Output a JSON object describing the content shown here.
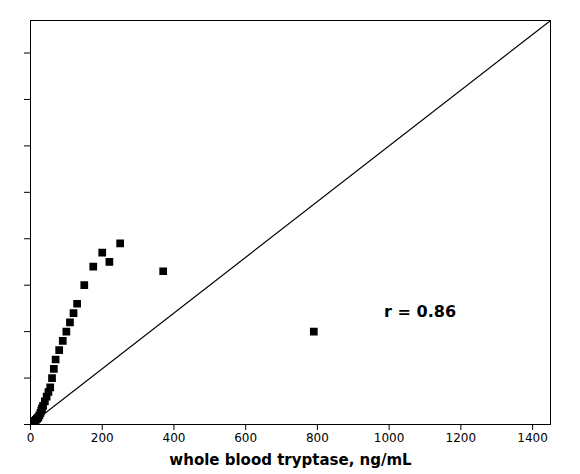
{
  "chart_data": {
    "type": "scatter",
    "xlabel": "whole blood tryptase, ng/mL",
    "annotation": "r = 0.86",
    "series": [
      {
        "type": "scatter",
        "marker": "square",
        "color": "#000000",
        "x": [
          3,
          5,
          7,
          8,
          10,
          12,
          15,
          18,
          20,
          22,
          25,
          28,
          30,
          32,
          35,
          40,
          45,
          50,
          55,
          60,
          65,
          70,
          80,
          90,
          100,
          110,
          120,
          130,
          150,
          175,
          200,
          220,
          250,
          370,
          790
        ],
        "values": [
          2,
          3,
          4,
          5,
          6,
          8,
          10,
          12,
          14,
          16,
          20,
          25,
          30,
          35,
          40,
          50,
          60,
          70,
          80,
          100,
          120,
          140,
          160,
          180,
          200,
          220,
          240,
          260,
          300,
          340,
          370,
          350,
          390,
          330,
          200
        ]
      },
      {
        "type": "line",
        "line_style": "solid",
        "color": "#000000",
        "x": [
          0,
          1450
        ],
        "values": [
          0,
          870
        ]
      }
    ],
    "xlim": [
      0,
      1450
    ],
    "ylim": [
      0,
      870
    ],
    "xticks": [
      0,
      200,
      400,
      600,
      800,
      1000,
      1200,
      1400
    ],
    "yticks": [
      0,
      100,
      200,
      300,
      400,
      500,
      600,
      700,
      800
    ],
    "tick_labels": "x",
    "grid": false
  }
}
